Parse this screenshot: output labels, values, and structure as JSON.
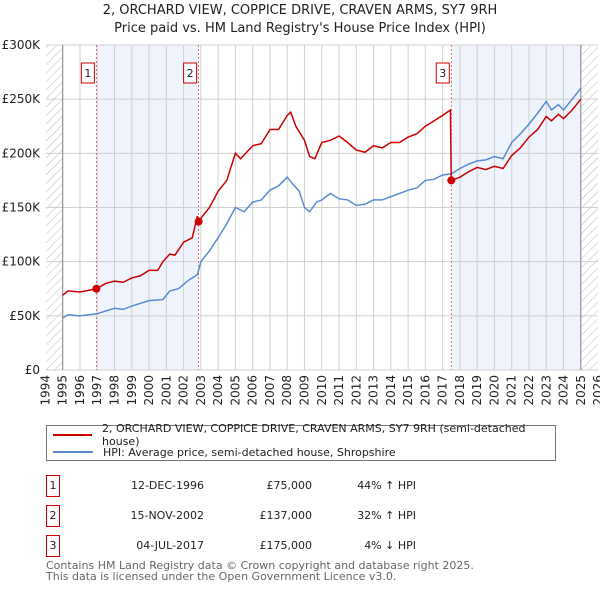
{
  "chart_data": {
    "type": "line",
    "title": "2, ORCHARD VIEW, COPPICE DRIVE, CRAVEN ARMS, SY7 9RH",
    "subtitle": "Price paid vs. HM Land Registry's House Price Index (HPI)",
    "xlim": [
      1994,
      2026
    ],
    "ylim": [
      0,
      300000
    ],
    "x_ticks": [
      "1994",
      "1995",
      "1996",
      "1997",
      "1998",
      "1999",
      "2000",
      "2001",
      "2002",
      "2003",
      "2004",
      "2005",
      "2006",
      "2007",
      "2008",
      "2009",
      "2010",
      "2011",
      "2012",
      "2013",
      "2014",
      "2015",
      "2016",
      "2017",
      "2018",
      "2019",
      "2020",
      "2021",
      "2022",
      "2023",
      "2024",
      "2025",
      "2026"
    ],
    "y_ticks": [
      {
        "v": 0,
        "label": "£0"
      },
      {
        "v": 50000,
        "label": "£50K"
      },
      {
        "v": 100000,
        "label": "£100K"
      },
      {
        "v": 150000,
        "label": "£150K"
      },
      {
        "v": 200000,
        "label": "£200K"
      },
      {
        "v": 250000,
        "label": "£250K"
      },
      {
        "v": 300000,
        "label": "£300K"
      }
    ],
    "series": [
      {
        "name": "2, ORCHARD VIEW, COPPICE DRIVE, CRAVEN ARMS, SY7 9RH (semi-detached house)",
        "color": "#cc0000",
        "points": [
          [
            1995,
            69
          ],
          [
            1995.3,
            73
          ],
          [
            1996,
            72
          ],
          [
            1996.95,
            75
          ],
          [
            1997.5,
            80
          ],
          [
            1998,
            82
          ],
          [
            1998.5,
            81
          ],
          [
            1999,
            85
          ],
          [
            1999.5,
            87
          ],
          [
            2000,
            92
          ],
          [
            2000.5,
            92
          ],
          [
            2000.8,
            100
          ],
          [
            2001.2,
            107
          ],
          [
            2001.5,
            106
          ],
          [
            2002,
            118
          ],
          [
            2002.5,
            122
          ],
          [
            2002.8,
            142
          ],
          [
            2002.87,
            137
          ],
          [
            2003,
            140
          ],
          [
            2003.5,
            150
          ],
          [
            2004,
            165
          ],
          [
            2004.5,
            175
          ],
          [
            2005,
            200
          ],
          [
            2005.3,
            195
          ],
          [
            2006,
            207
          ],
          [
            2006.5,
            209
          ],
          [
            2007,
            222
          ],
          [
            2007.5,
            222
          ],
          [
            2008,
            235
          ],
          [
            2008.2,
            238
          ],
          [
            2008.5,
            225
          ],
          [
            2009,
            212
          ],
          [
            2009.3,
            197
          ],
          [
            2009.6,
            195
          ],
          [
            2010,
            210
          ],
          [
            2010.5,
            212
          ],
          [
            2011,
            216
          ],
          [
            2011.5,
            210
          ],
          [
            2012,
            203
          ],
          [
            2012.5,
            201
          ],
          [
            2013,
            207
          ],
          [
            2013.5,
            205
          ],
          [
            2014,
            210
          ],
          [
            2014.5,
            210
          ],
          [
            2015,
            215
          ],
          [
            2015.5,
            218
          ],
          [
            2016,
            225
          ],
          [
            2016.5,
            230
          ],
          [
            2017,
            235
          ],
          [
            2017.45,
            240
          ],
          [
            2017.5,
            175
          ],
          [
            2018,
            178
          ],
          [
            2018.5,
            183
          ],
          [
            2019,
            187
          ],
          [
            2019.5,
            185
          ],
          [
            2020,
            188
          ],
          [
            2020.5,
            186
          ],
          [
            2021,
            198
          ],
          [
            2021.5,
            205
          ],
          [
            2022,
            215
          ],
          [
            2022.5,
            222
          ],
          [
            2023,
            234
          ],
          [
            2023.3,
            230
          ],
          [
            2023.7,
            236
          ],
          [
            2024,
            232
          ],
          [
            2024.5,
            240
          ],
          [
            2025,
            250
          ]
        ]
      },
      {
        "name": "HPI: Average price, semi-detached house, Shropshire",
        "color": "#5b8bd0",
        "points": [
          [
            1995,
            48
          ],
          [
            1995.3,
            51
          ],
          [
            1996,
            50
          ],
          [
            1997,
            52
          ],
          [
            1998,
            57
          ],
          [
            1998.5,
            56
          ],
          [
            1999,
            59
          ],
          [
            2000,
            64
          ],
          [
            2000.8,
            65
          ],
          [
            2001.2,
            73
          ],
          [
            2001.7,
            75
          ],
          [
            2002.3,
            83
          ],
          [
            2002.8,
            88
          ],
          [
            2003,
            100
          ],
          [
            2003.5,
            110
          ],
          [
            2004,
            122
          ],
          [
            2004.5,
            135
          ],
          [
            2005,
            150
          ],
          [
            2005.5,
            146
          ],
          [
            2006,
            155
          ],
          [
            2006.5,
            157
          ],
          [
            2007,
            166
          ],
          [
            2007.5,
            170
          ],
          [
            2008,
            178
          ],
          [
            2008.3,
            172
          ],
          [
            2008.7,
            165
          ],
          [
            2009,
            150
          ],
          [
            2009.3,
            146
          ],
          [
            2009.7,
            155
          ],
          [
            2010,
            157
          ],
          [
            2010.5,
            163
          ],
          [
            2011,
            158
          ],
          [
            2011.5,
            157
          ],
          [
            2012,
            152
          ],
          [
            2012.5,
            153
          ],
          [
            2013,
            157
          ],
          [
            2013.5,
            157
          ],
          [
            2014,
            160
          ],
          [
            2014.5,
            163
          ],
          [
            2015,
            166
          ],
          [
            2015.5,
            168
          ],
          [
            2016,
            175
          ],
          [
            2016.5,
            176
          ],
          [
            2017,
            180
          ],
          [
            2017.5,
            181
          ],
          [
            2018,
            186
          ],
          [
            2018.5,
            190
          ],
          [
            2019,
            193
          ],
          [
            2019.5,
            194
          ],
          [
            2020,
            197
          ],
          [
            2020.5,
            195
          ],
          [
            2021,
            210
          ],
          [
            2021.5,
            218
          ],
          [
            2022,
            227
          ],
          [
            2022.5,
            237
          ],
          [
            2023,
            248
          ],
          [
            2023.3,
            240
          ],
          [
            2023.7,
            245
          ],
          [
            2024,
            240
          ],
          [
            2024.5,
            250
          ],
          [
            2025,
            260
          ]
        ]
      }
    ],
    "sales": [
      {
        "label": "1",
        "x": 1996.95,
        "y": 75000
      },
      {
        "label": "2",
        "x": 2002.87,
        "y": 137000
      },
      {
        "label": "3",
        "x": 2017.5,
        "y": 175000
      }
    ],
    "shaded_ranges": [
      [
        1996.95,
        2002.87
      ],
      [
        2017.5,
        2025
      ]
    ],
    "hatched_ranges": [
      [
        1994,
        1995
      ],
      [
        2025,
        2026
      ]
    ]
  },
  "legend": {
    "red": "2, ORCHARD VIEW, COPPICE DRIVE, CRAVEN ARMS, SY7 9RH (semi-detached house)",
    "blue": "HPI: Average price, semi-detached house, Shropshire"
  },
  "table": [
    {
      "num": "1",
      "date": "12-DEC-1996",
      "price": "£75,000",
      "hpi": "44% ↑ HPI"
    },
    {
      "num": "2",
      "date": "15-NOV-2002",
      "price": "£137,000",
      "hpi": "32% ↑ HPI"
    },
    {
      "num": "3",
      "date": "04-JUL-2017",
      "price": "£175,000",
      "hpi": "4% ↓ HPI"
    }
  ],
  "footer": {
    "line1": "Contains HM Land Registry data © Crown copyright and database right 2025.",
    "line2": "This data is licensed under the Open Government Licence v3.0."
  }
}
